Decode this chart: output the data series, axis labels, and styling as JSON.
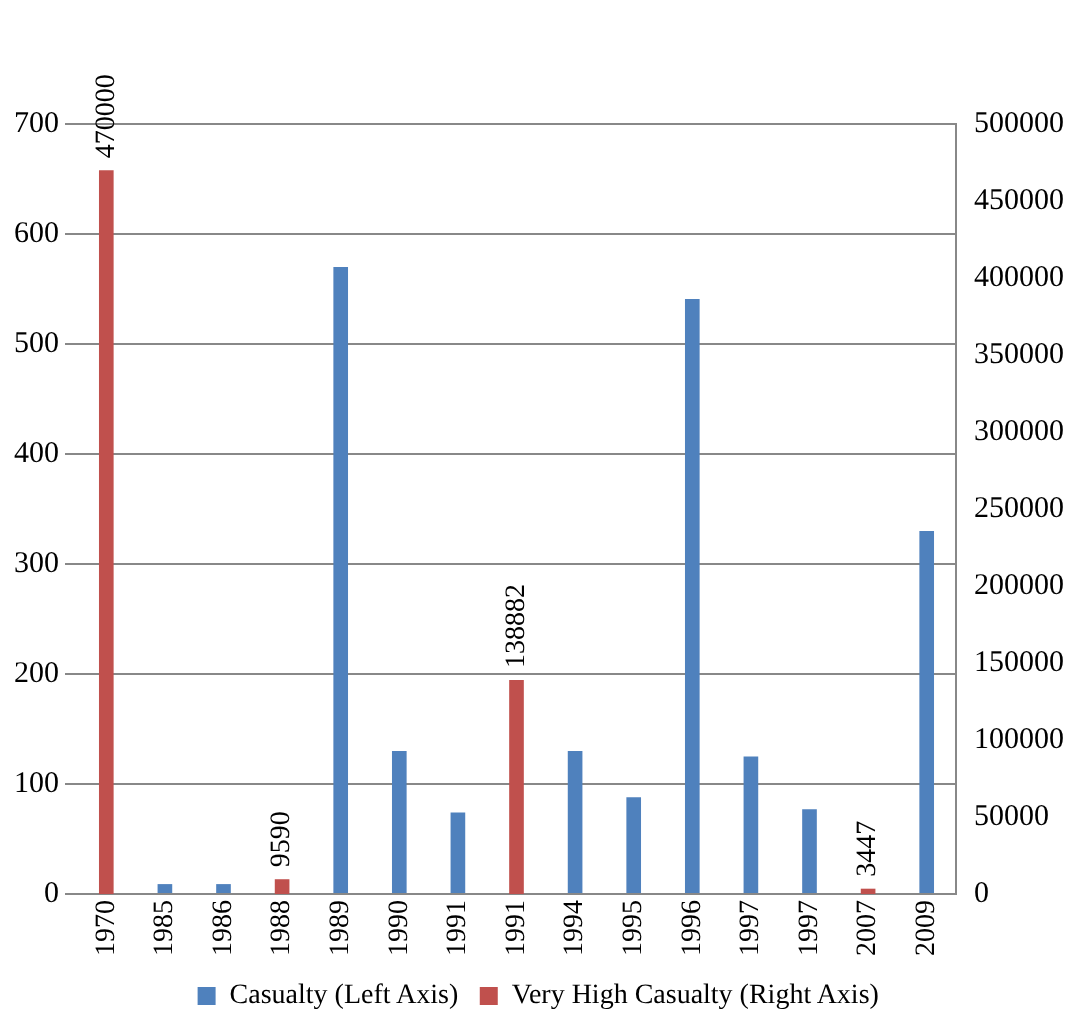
{
  "chart_data": {
    "type": "bar",
    "categories": [
      "1970",
      "1985",
      "1986",
      "1988",
      "1989",
      "1990",
      "1991",
      "1991",
      "1994",
      "1995",
      "1996",
      "1997",
      "1997",
      "2007",
      "2009"
    ],
    "series": [
      {
        "name": "Casualty (Left Axis)",
        "color": "#4f81bd",
        "values": [
          null,
          9,
          9,
          null,
          570,
          130,
          74,
          null,
          130,
          88,
          541,
          125,
          77,
          null,
          330
        ]
      },
      {
        "name": "Very High Casualty (Right Axis)",
        "color": "#c0504d",
        "axis": "y2",
        "values": [
          470000,
          null,
          null,
          9590,
          null,
          null,
          null,
          138882,
          null,
          null,
          null,
          null,
          null,
          3447,
          null
        ],
        "value_labels": [
          "470000",
          null,
          null,
          "9590",
          null,
          null,
          null,
          "138882",
          null,
          null,
          null,
          null,
          null,
          "3447",
          null
        ]
      }
    ],
    "ylim": [
      0,
      700
    ],
    "yticks": [
      0,
      100,
      200,
      300,
      400,
      500,
      600,
      700
    ],
    "y2lim": [
      0,
      500000
    ],
    "y2ticks": [
      0,
      50000,
      100000,
      150000,
      200000,
      250000,
      300000,
      350000,
      400000,
      450000,
      500000
    ],
    "grid": "y",
    "legend": "bottom"
  }
}
